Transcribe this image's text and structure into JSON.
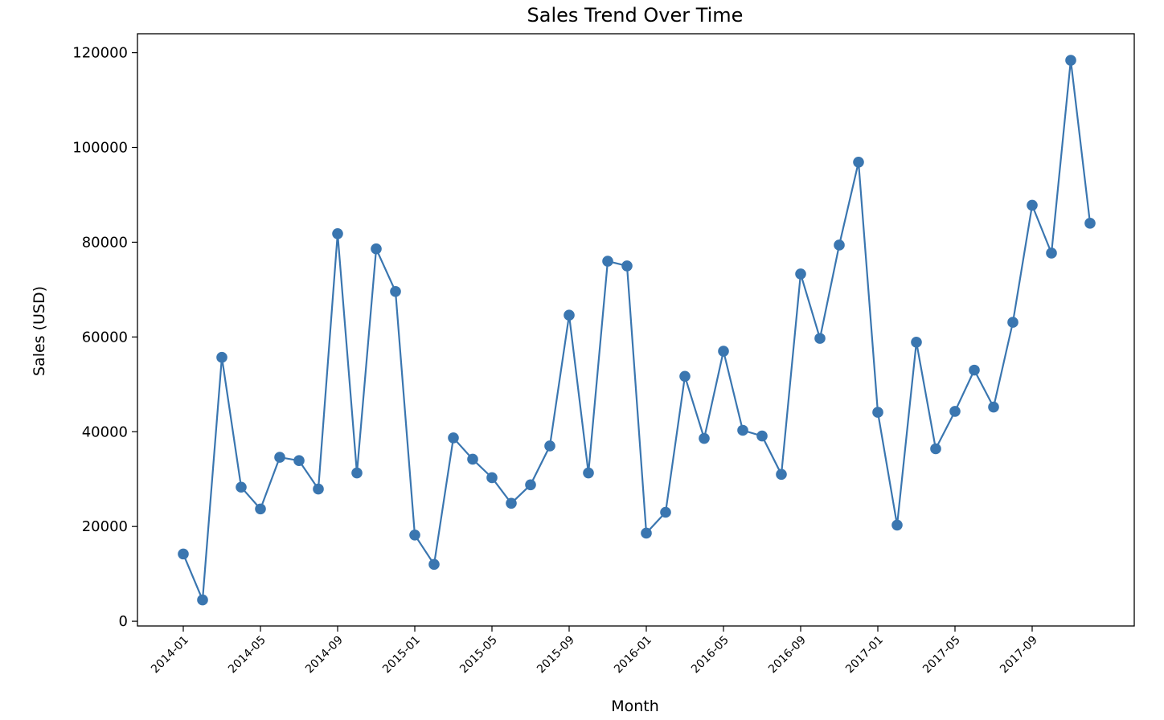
{
  "chart_data": {
    "type": "line",
    "title": "Sales Trend Over Time",
    "xlabel": "Month",
    "ylabel": "Sales (USD)",
    "ylim": [
      -1000,
      124000
    ],
    "yticks": [
      0,
      20000,
      40000,
      60000,
      80000,
      100000,
      120000
    ],
    "xtick_labels": [
      "2014-01",
      "2014-05",
      "2014-09",
      "2015-01",
      "2015-05",
      "2015-09",
      "2016-01",
      "2016-05",
      "2016-09",
      "2017-01",
      "2017-05",
      "2017-09"
    ],
    "grid": false,
    "marker": "circle",
    "color": "#3a76b0",
    "series": [
      {
        "x": [
          "2014-01",
          "2014-02",
          "2014-03",
          "2014-04",
          "2014-05",
          "2014-06",
          "2014-07",
          "2014-08",
          "2014-09",
          "2014-10",
          "2014-11",
          "2014-12",
          "2015-01",
          "2015-02",
          "2015-03",
          "2015-04",
          "2015-05",
          "2015-06",
          "2015-07",
          "2015-08",
          "2015-09",
          "2015-10",
          "2015-11",
          "2015-12",
          "2016-01",
          "2016-02",
          "2016-03",
          "2016-04",
          "2016-05",
          "2016-06",
          "2016-07",
          "2016-08",
          "2016-09",
          "2016-10",
          "2016-11",
          "2016-12",
          "2017-01",
          "2017-02",
          "2017-03",
          "2017-04",
          "2017-05",
          "2017-06",
          "2017-07",
          "2017-08",
          "2017-09",
          "2017-10",
          "2017-11",
          "2017-12"
        ],
        "values": [
          14200,
          4500,
          55700,
          28300,
          23700,
          34600,
          33900,
          27900,
          81800,
          31300,
          78600,
          69600,
          18200,
          12000,
          38700,
          34200,
          30300,
          24900,
          28800,
          37000,
          64600,
          31300,
          76000,
          75000,
          18600,
          23000,
          51700,
          38600,
          57000,
          40300,
          39100,
          31000,
          73300,
          59700,
          79400,
          96900,
          44100,
          20300,
          58900,
          36400,
          44300,
          53000,
          45200,
          63100,
          87800,
          77700,
          118400,
          84000
        ]
      }
    ]
  }
}
